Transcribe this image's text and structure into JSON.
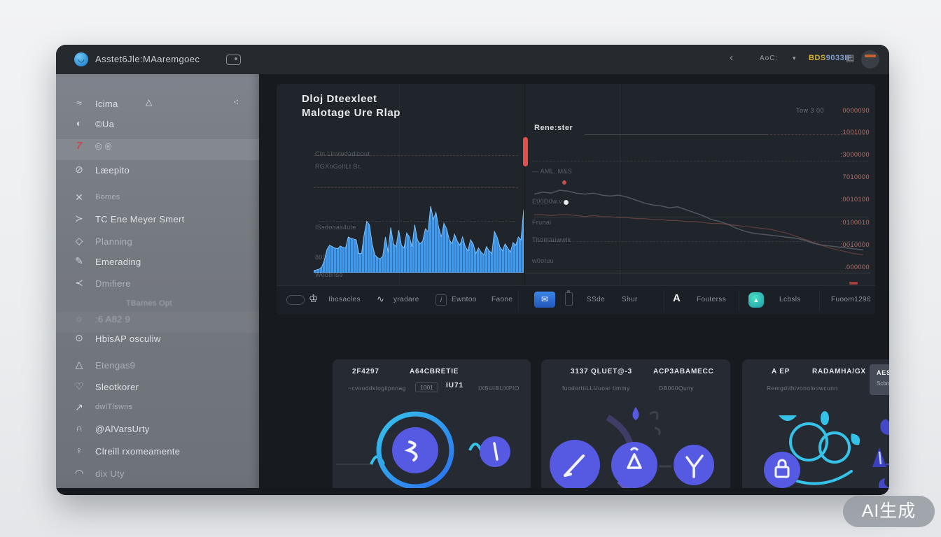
{
  "topbar": {
    "title": "Asstet6Jle:MAaremgoec",
    "logo_glyph": "◡",
    "back_icon": "‹",
    "dropdown_label": "AoC:",
    "dropdown_caret": "▾",
    "account_prefix": "BDS",
    "account_suffix": "9033IF",
    "account_icon": "▤"
  },
  "sidebar": {
    "items": [
      {
        "icon": "≈",
        "label": "Icima",
        "badge": "△",
        "trailing": "⁖"
      },
      {
        "icon": "◐",
        "label": "©Ua"
      },
      {
        "icon": "7",
        "label": "© ®"
      },
      {
        "icon": "⊘",
        "label": "Læepito"
      },
      {
        "icon": "✕",
        "label": "Bomes"
      },
      {
        "icon": "≻",
        "label": "TC Ene Meyer Smert"
      },
      {
        "icon": "◇",
        "label": "Planning"
      },
      {
        "icon": "✎",
        "label": "Emerading"
      },
      {
        "icon": "≺",
        "label": "Dmifiere"
      },
      {
        "icon": "≡",
        "label": "TBarnes  Opt"
      },
      {
        "icon": "☼",
        "label": ":6 A82 9"
      },
      {
        "icon": "⊙",
        "label": "HbisAP osculiw"
      },
      {
        "icon": "△",
        "label": "Etengas9"
      },
      {
        "icon": "♡",
        "label": "Sleotkorer"
      },
      {
        "icon": "↗",
        "label": "dwiTlswns"
      },
      {
        "icon": "∩",
        "label": "@AlVarsUrty"
      },
      {
        "icon": "♀",
        "label": "Clreill rxomeamente"
      },
      {
        "icon": "◠",
        "label": "dix Uty"
      }
    ]
  },
  "chart_panel": {
    "title_line1": "Dloj Dteexleet",
    "title_line2": "Malotage Ure Rlap",
    "axis_labels": [
      "Cin Linvwdadicout",
      "RGXnGoltLt Br.",
      "ISsdooas4ute",
      "8006t3cwA6",
      "Wootinse"
    ]
  },
  "right_panel": {
    "header": "Rene:ster",
    "meta_text": "Tow  3 00",
    "values": [
      "0000090",
      ":1001000",
      ":3000000",
      "7010000",
      ":0010100",
      ":0100010",
      ":0010000",
      ".000000"
    ],
    "row_labels": [
      "— AML..M&S",
      "E00D0w.v",
      "Frunai",
      "Thomauwwlk",
      "w0otuu"
    ]
  },
  "toolbar": {
    "items": [
      {
        "label": "Ibosacles",
        "icon_glyph": "♔"
      },
      {
        "label": "yradare",
        "icon_glyph": "∿"
      },
      {
        "label": "Ewntoo",
        "icon_glyph": "i"
      },
      {
        "label": "Faone"
      },
      {
        "label": "SSde"
      },
      {
        "label": "Shur"
      },
      {
        "label": "Fouterss",
        "icon_glyph": "A"
      },
      {
        "label": "Lcbsls",
        "icon_glyph": "▲"
      },
      {
        "label": "Fuoom1296"
      }
    ]
  },
  "cards": [
    {
      "title_left": "2F4297",
      "title_right": "A64CBRETIE",
      "sub_left": "~cvooddslogiipnnag",
      "sub_box": "1001",
      "sub_badge": "IU71",
      "sub_right": "IXBUIBUXPIO"
    },
    {
      "title_left": "3137 QLUET@-3",
      "title_right": "ACP3ABAMECC",
      "sub_left": "fuodorttiLLUuosr timmy",
      "sub_right": "DB000Quny"
    },
    {
      "title_left": "A EP",
      "title_mid": "RADAMHA/GX",
      "chip_line1": "AESVAPG",
      "chip_line2": "Scbnmxd.",
      "sub_left": "Remgdtthivonoloowcunn"
    }
  ],
  "watermark": "AI生成",
  "chart_data": [
    {
      "type": "area",
      "name": "main-usage-area",
      "title": "Dloj Dteexleet Malotage Ure Rlap",
      "color": "#3d9bf2",
      "ylim": [
        0,
        100
      ],
      "values": [
        3,
        4,
        5,
        8,
        18,
        34,
        40,
        38,
        36,
        35,
        39,
        37,
        36,
        52,
        50,
        49,
        48,
        28,
        28,
        56,
        75,
        70,
        42,
        26,
        22,
        20,
        24,
        52,
        30,
        66,
        42,
        38,
        62,
        40,
        36,
        58,
        52,
        38,
        70,
        48,
        42,
        46,
        64,
        60,
        97,
        78,
        88,
        66,
        52,
        72,
        64,
        48,
        42,
        56,
        46,
        40,
        52,
        38,
        32,
        48,
        42,
        28,
        36,
        30,
        26,
        38,
        32,
        28,
        60,
        52,
        38,
        32,
        42,
        36,
        30,
        44,
        40,
        52,
        48,
        92
      ]
    },
    {
      "type": "line",
      "name": "right-trend-line",
      "color": "#596069",
      "ylim": [
        0,
        100
      ],
      "values": [
        66,
        68,
        67,
        70,
        69,
        67,
        66,
        67,
        65,
        64,
        65,
        63,
        60,
        57,
        55,
        54,
        52,
        53,
        50,
        47,
        44,
        40,
        38,
        35,
        31,
        28,
        26,
        25,
        24,
        23,
        22,
        21,
        19,
        16,
        14,
        13,
        12,
        11,
        10,
        9
      ]
    },
    {
      "type": "line",
      "name": "right-secondary-line",
      "color": "#9c5a52",
      "ylim": [
        0,
        100
      ],
      "values": [
        45,
        45,
        44,
        45,
        45,
        44,
        43,
        44,
        43,
        43,
        42,
        42,
        41,
        41,
        40,
        40,
        39,
        39,
        38,
        38,
        37,
        36,
        36,
        35,
        34,
        33,
        32,
        31,
        30,
        28,
        26,
        23,
        20,
        17,
        14,
        11,
        9,
        7,
        5,
        4
      ]
    }
  ]
}
